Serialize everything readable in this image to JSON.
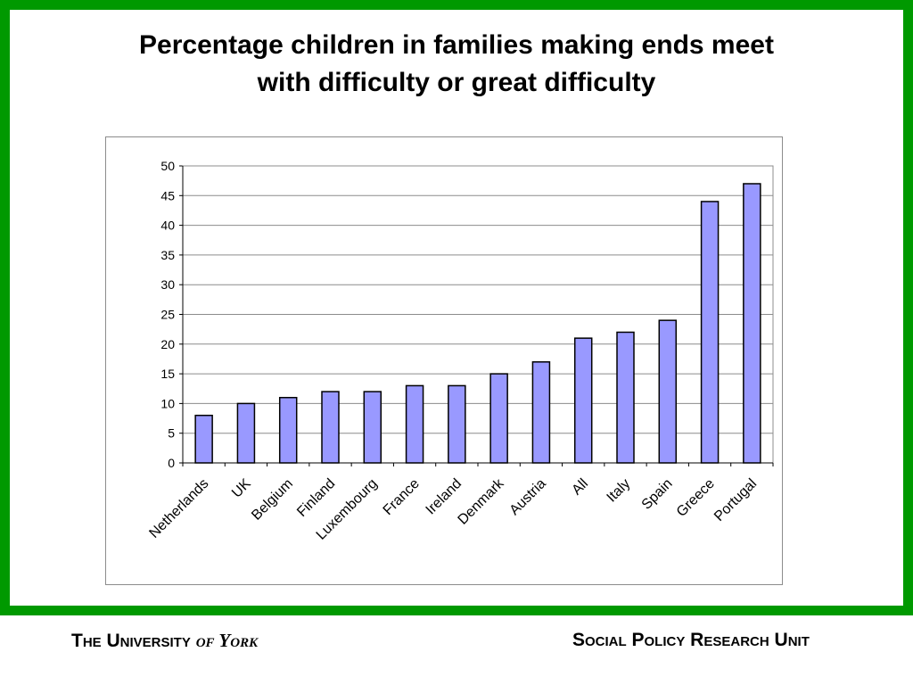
{
  "title": {
    "line1": "Percentage children in families making ends meet",
    "line2": "with difficulty or great difficulty"
  },
  "footer": {
    "university_prefix": "The University",
    "university_name": "of York",
    "unit": "Social Policy Research Unit"
  },
  "colors": {
    "frame": "#009900",
    "bar_fill": "#9999ff",
    "bar_stroke": "#000000",
    "gridline": "#8c8c8c"
  },
  "chart_data": {
    "type": "bar",
    "title": "Percentage children in families making ends meet with difficulty or great difficulty",
    "xlabel": "",
    "ylabel": "",
    "categories": [
      "Netherlands",
      "UK",
      "Belgium",
      "Finland",
      "Luxembourg",
      "France",
      "Ireland",
      "Denmark",
      "Austria",
      "All",
      "Italy",
      "Spain",
      "Greece",
      "Portugal"
    ],
    "values": [
      8,
      10,
      11,
      12,
      12,
      13,
      13,
      15,
      17,
      21,
      22,
      24,
      44,
      47
    ],
    "ylim": [
      0,
      50
    ],
    "yticks": [
      0,
      5,
      10,
      15,
      20,
      25,
      30,
      35,
      40,
      45,
      50
    ],
    "grid": true,
    "legend": "none"
  }
}
